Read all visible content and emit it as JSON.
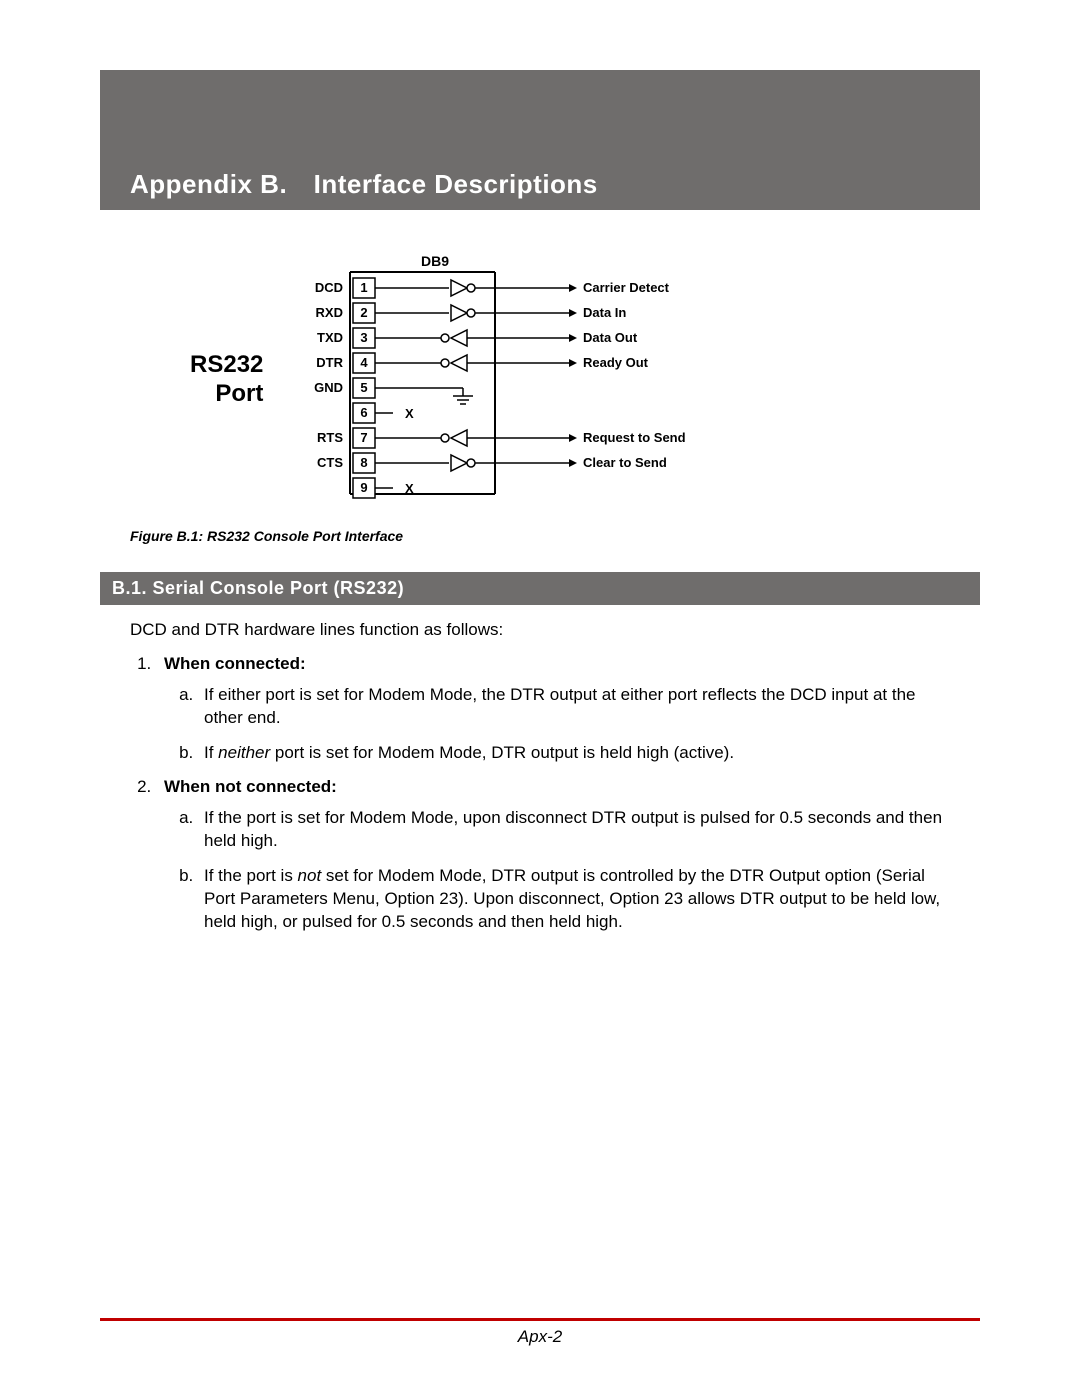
{
  "header": {
    "title": "Appendix B. Interface Descriptions"
  },
  "figure": {
    "side_label_line1": "RS232",
    "side_label_line2": "Port",
    "connector_label": "DB9",
    "caption": "Figure B.1:  RS232 Console Port Interface",
    "pins": [
      {
        "num": "1",
        "left": "DCD",
        "right": "Carrier Detect",
        "dir": "in",
        "nc": false
      },
      {
        "num": "2",
        "left": "RXD",
        "right": "Data In",
        "dir": "in",
        "nc": false
      },
      {
        "num": "3",
        "left": "TXD",
        "right": "Data Out",
        "dir": "out",
        "nc": false
      },
      {
        "num": "4",
        "left": "DTR",
        "right": "Ready Out",
        "dir": "out",
        "nc": false
      },
      {
        "num": "5",
        "left": "GND",
        "right": "",
        "dir": "gnd",
        "nc": false
      },
      {
        "num": "6",
        "left": "",
        "right": "",
        "dir": "none",
        "nc": true
      },
      {
        "num": "7",
        "left": "RTS",
        "right": "Request to Send",
        "dir": "out",
        "nc": false
      },
      {
        "num": "8",
        "left": "CTS",
        "right": "Clear to Send",
        "dir": "in",
        "nc": false
      },
      {
        "num": "9",
        "left": "",
        "right": "",
        "dir": "none",
        "nc": true
      }
    ],
    "nc_label": "X",
    "style": {
      "stroke": "#000000",
      "bg": "#ffffff",
      "font_family": "Arial",
      "label_size_pt": 12,
      "pin_size_pt": 12
    }
  },
  "section": {
    "heading": "B.1.  Serial Console Port (RS232)",
    "intro": "DCD and DTR hardware lines function as follows:",
    "items": [
      {
        "head": "When connected:",
        "subs": [
          "If either port is set for Modem Mode, the DTR output at either port reflects the DCD input at the other end.",
          "If <span class=\"em\">neither</span> port is set for Modem Mode, DTR output is held high (active)."
        ]
      },
      {
        "head": "When not connected:",
        "subs": [
          "If the port is set for Modem Mode, upon disconnect DTR output is pulsed for 0.5 seconds and then held high.",
          "If the port is <span class=\"em\">not</span> set for Modem Mode, DTR output is controlled by the DTR Output option (Serial Port Parameters Menu, Option 23).  Upon disconnect, Option 23 allows DTR output to be held low, held high, or pulsed for 0.5 seconds and then held high."
        ]
      }
    ]
  },
  "footer": {
    "page": "Apx-2",
    "rule_color": "#c00000"
  }
}
